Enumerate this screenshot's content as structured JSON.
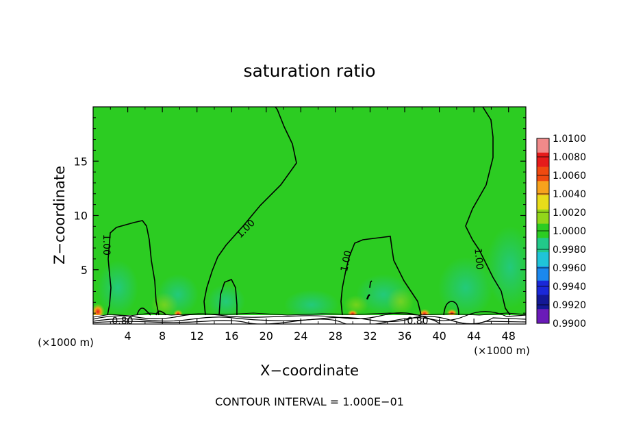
{
  "chart_data": {
    "type": "contour",
    "title": "saturation ratio",
    "xlabel": "X−coordinate",
    "ylabel": "Z−coordinate",
    "x_unit_left": "(×1000 m)",
    "x_unit_right": "(×1000 m)",
    "footer": "CONTOUR INTERVAL = 1.000E−01",
    "xlim": [
      0,
      50
    ],
    "ylim": [
      0,
      20
    ],
    "x_ticks": [
      4,
      8,
      12,
      16,
      20,
      24,
      28,
      32,
      36,
      40,
      44,
      48
    ],
    "x_tick_labels": [
      "4",
      "8",
      "12",
      "16",
      "20",
      "24",
      "28",
      "32",
      "36",
      "40",
      "44",
      "48"
    ],
    "y_ticks": [
      5,
      10,
      15
    ],
    "y_tick_labels": [
      "5",
      "10",
      "15"
    ],
    "background_color": "#2ccc22",
    "colorbar": {
      "levels": [
        "1.0100",
        "1.0080",
        "1.0060",
        "1.0040",
        "1.0020",
        "1.0000",
        "0.9980",
        "0.9960",
        "0.9940",
        "0.9920",
        "0.9900"
      ],
      "colors": [
        "#f08a8a",
        "#e61b1b",
        "#f04a10",
        "#f7a21c",
        "#e8dc1a",
        "#92d61a",
        "#2ccc22",
        "#22c98a",
        "#20c4d8",
        "#1b88ee",
        "#1a28d8",
        "#131896",
        "#6a1ab8"
      ]
    },
    "contour_labels": [
      {
        "text": "1.00",
        "x": 1.6,
        "z": 7.3,
        "angle": 90
      },
      {
        "text": "1.00",
        "x": 17.6,
        "z": 8.8,
        "angle": -45
      },
      {
        "text": "1.00",
        "x": 29.2,
        "z": 5.8,
        "angle": -78
      },
      {
        "text": "1.00",
        "x": 44.6,
        "z": 6.0,
        "angle": 85
      },
      {
        "text": "0.80",
        "x": 3.4,
        "z": 0.3,
        "angle": 0
      },
      {
        "text": "0.80",
        "x": 37.5,
        "z": 0.3,
        "angle": 0
      }
    ]
  }
}
